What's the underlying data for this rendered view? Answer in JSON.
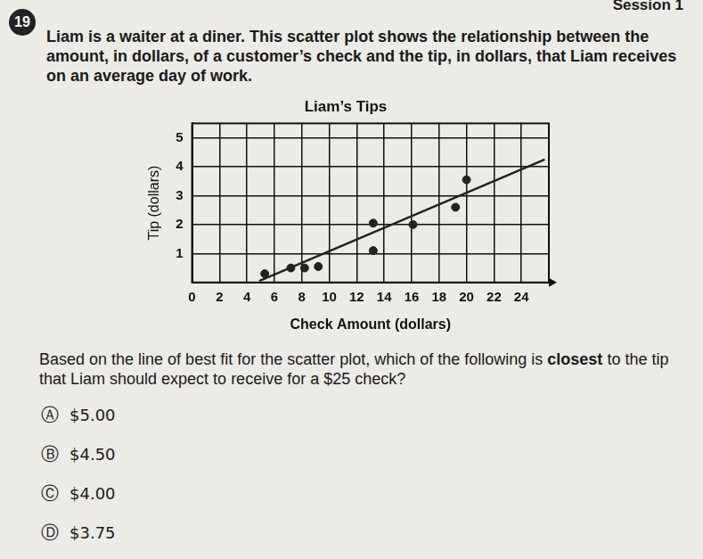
{
  "header": {
    "session": "Session 1"
  },
  "question": {
    "number": "19",
    "text": "Liam is a waiter at a diner. This scatter plot shows the relationship between the amount, in dollars, of a customer’s check and the tip, in dollars, that Liam receives on an average day of work.",
    "prompt": {
      "before": "Based on the line of best fit for the scatter plot, which of the following is ",
      "bold": "closest",
      "after": " to the tip that Liam should expect to receive for a $25 check?"
    },
    "choices": [
      {
        "letter": "Ⓐ",
        "text": "$5.00"
      },
      {
        "letter": "Ⓑ",
        "text": "$4.50"
      },
      {
        "letter": "Ⓒ",
        "text": "$4.00"
      },
      {
        "letter": "Ⓓ",
        "text": "$3.75"
      }
    ]
  },
  "chart_data": {
    "type": "scatter",
    "title": "Liam’s Tips",
    "x_label": "Check Amount (dollars)",
    "y_label": "Tip (dollars)",
    "xlim": [
      0,
      26
    ],
    "ylim": [
      0,
      5.5
    ],
    "xticks": [
      0,
      2,
      4,
      6,
      8,
      10,
      12,
      14,
      16,
      18,
      20,
      22,
      24
    ],
    "yticks": [
      1,
      2,
      3,
      4,
      5
    ],
    "grid": true,
    "series": [
      {
        "type": "scatter",
        "marker": "circle",
        "color": "#222222",
        "x": [
          5.3,
          7.2,
          8.2,
          9.2,
          13.2,
          13.2,
          16.1,
          19.2,
          20.0
        ],
        "values": [
          0.3,
          0.5,
          0.5,
          0.55,
          1.1,
          2.05,
          2.0,
          2.6,
          3.55
        ]
      },
      {
        "type": "line",
        "line_style": "solid",
        "color": "#222222",
        "x": [
          4.9,
          25.7
        ],
        "values": [
          0.05,
          4.25
        ]
      }
    ]
  }
}
